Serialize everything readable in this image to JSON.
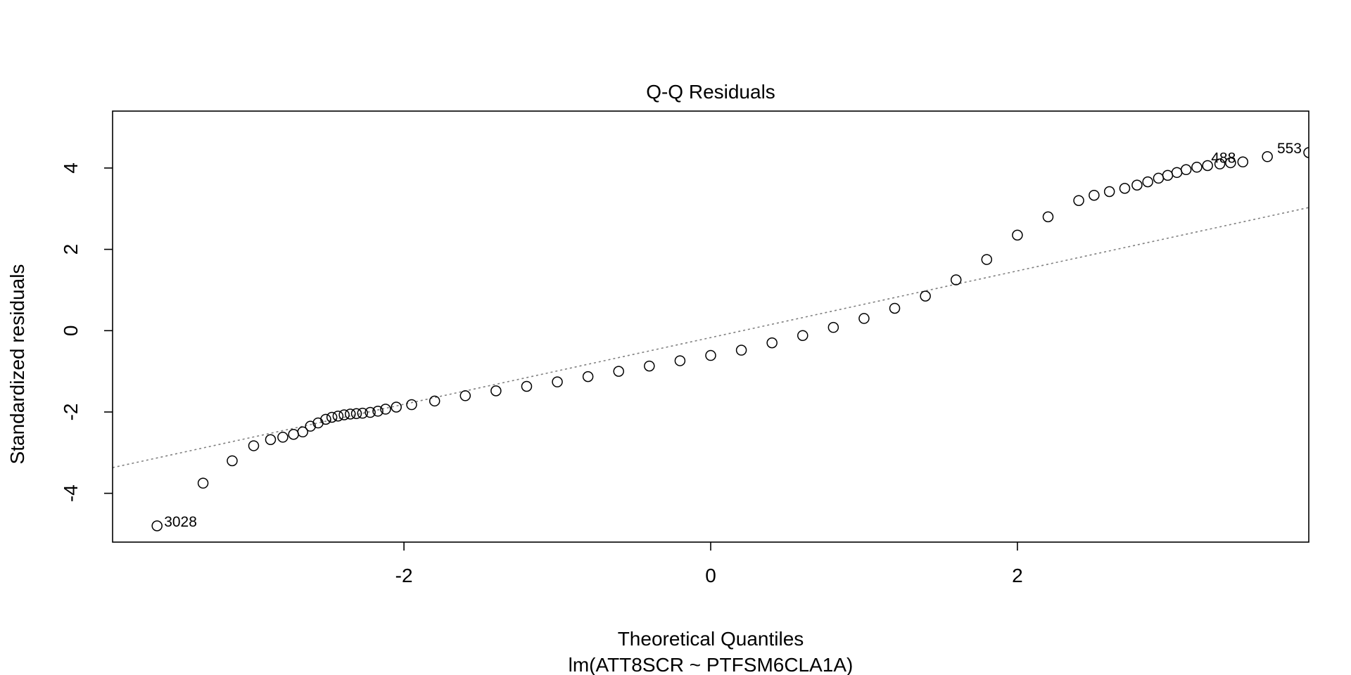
{
  "chart_data": {
    "type": "scatter",
    "title": "Q-Q Residuals",
    "xlabel": "Theoretical Quantiles",
    "subtitle": "lm(ATT8SCR ~ PTFSM6CLA1A)",
    "ylabel": "Standardized residuals",
    "xlim": [
      -3.9,
      3.9
    ],
    "ylim": [
      -5.2,
      5.4
    ],
    "xticks": [
      -2,
      0,
      2
    ],
    "yticks": [
      -4,
      -2,
      0,
      2,
      4
    ],
    "grid": false,
    "reference_line": {
      "intercept": -0.17,
      "slope": 0.82,
      "style": "dotted",
      "color": "#808080"
    },
    "point_color": "#000000",
    "series": [
      {
        "points": [
          [
            -3.61,
            -4.8
          ],
          [
            -3.31,
            -3.75
          ],
          [
            -3.12,
            -3.2
          ],
          [
            -2.98,
            -2.83
          ],
          [
            -2.87,
            -2.68
          ],
          [
            -2.79,
            -2.62
          ],
          [
            -2.72,
            -2.55
          ],
          [
            -2.66,
            -2.49
          ],
          [
            -2.61,
            -2.35
          ],
          [
            -2.56,
            -2.27
          ],
          [
            -2.51,
            -2.18
          ],
          [
            -2.47,
            -2.13
          ],
          [
            -2.43,
            -2.1
          ],
          [
            -2.39,
            -2.07
          ],
          [
            -2.35,
            -2.05
          ],
          [
            -2.31,
            -2.04
          ],
          [
            -2.27,
            -2.03
          ],
          [
            -2.22,
            -2.01
          ],
          [
            -2.17,
            -1.98
          ],
          [
            -2.12,
            -1.93
          ],
          [
            -2.05,
            -1.88
          ],
          [
            -1.95,
            -1.82
          ],
          [
            -1.8,
            -1.73
          ],
          [
            -1.6,
            -1.6
          ],
          [
            -1.4,
            -1.48
          ],
          [
            -1.2,
            -1.37
          ],
          [
            -1.0,
            -1.26
          ],
          [
            -0.8,
            -1.13
          ],
          [
            -0.6,
            -1.0
          ],
          [
            -0.4,
            -0.87
          ],
          [
            -0.2,
            -0.74
          ],
          [
            0.0,
            -0.61
          ],
          [
            0.2,
            -0.48
          ],
          [
            0.4,
            -0.3
          ],
          [
            0.6,
            -0.12
          ],
          [
            0.8,
            0.08
          ],
          [
            1.0,
            0.3
          ],
          [
            1.2,
            0.55
          ],
          [
            1.4,
            0.85
          ],
          [
            1.6,
            1.25
          ],
          [
            1.8,
            1.75
          ],
          [
            2.0,
            2.35
          ],
          [
            2.2,
            2.8
          ],
          [
            2.4,
            3.2
          ],
          [
            2.5,
            3.33
          ],
          [
            2.6,
            3.42
          ],
          [
            2.7,
            3.5
          ],
          [
            2.78,
            3.58
          ],
          [
            2.85,
            3.66
          ],
          [
            2.92,
            3.75
          ],
          [
            2.98,
            3.82
          ],
          [
            3.04,
            3.89
          ],
          [
            3.1,
            3.96
          ],
          [
            3.17,
            4.02
          ],
          [
            3.24,
            4.06
          ],
          [
            3.32,
            4.1
          ],
          [
            3.39,
            4.13
          ],
          [
            3.47,
            4.15
          ],
          [
            3.63,
            4.28
          ],
          [
            3.9,
            4.38
          ]
        ]
      }
    ],
    "labeled_points": [
      {
        "label": "3028",
        "x": -3.61,
        "y": -4.8,
        "side": "right"
      },
      {
        "label": "488",
        "x": 3.47,
        "y": 4.15,
        "side": "left"
      },
      {
        "label": "553",
        "x": 3.9,
        "y": 4.38,
        "side": "left"
      }
    ]
  }
}
